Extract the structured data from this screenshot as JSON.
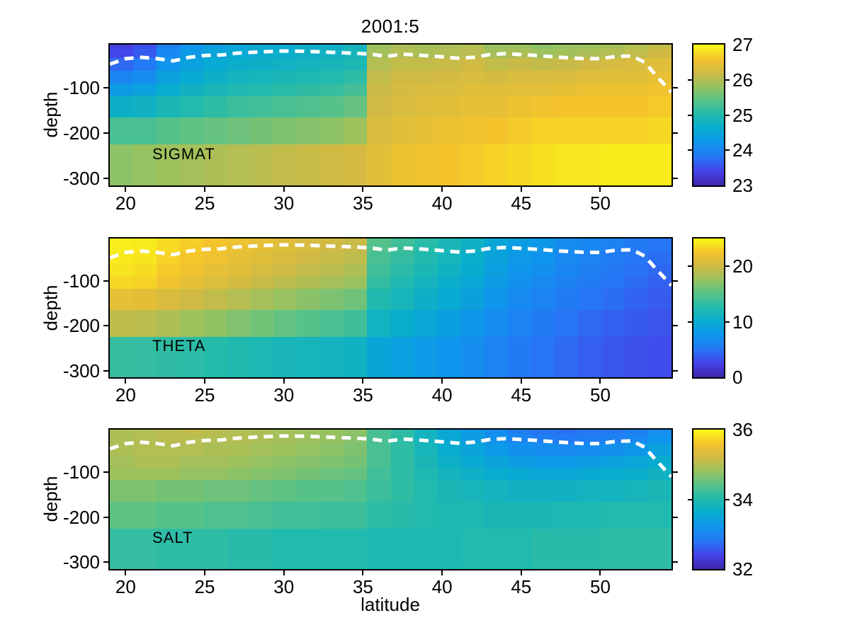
{
  "figure": {
    "title": "2001:5",
    "xlabel": "latitude",
    "ylabel": "depth",
    "background_color": "#ffffff",
    "text_color": "#000000"
  },
  "chart_data": {
    "type": "heatmap",
    "title": "2001:5",
    "xlabel": "latitude",
    "ylabel": "depth",
    "colormap": "parula",
    "grid": false,
    "x_range": [
      19.0,
      54.5
    ],
    "x_ticks": [
      20,
      25,
      30,
      35,
      40,
      45,
      50
    ],
    "depth_range": [
      -315,
      -5
    ],
    "y_ticks": [
      -100,
      -200,
      -300
    ],
    "lat_edges": [
      19.0,
      20.48,
      21.96,
      23.44,
      24.92,
      26.4,
      27.88,
      29.35,
      30.83,
      32.31,
      33.79,
      35.27,
      36.75,
      38.23,
      39.71,
      41.19,
      42.67,
      44.15,
      45.63,
      47.1,
      48.58,
      50.06,
      51.54,
      53.02,
      54.5
    ],
    "depth_edges": [
      -5,
      -15,
      -35,
      -63,
      -90,
      -117,
      -165,
      -225,
      -315
    ],
    "colormap_stops": [
      [
        0.0,
        [
          62,
          38,
          168
        ]
      ],
      [
        0.1,
        [
          70,
          66,
          232
        ]
      ],
      [
        0.2,
        [
          38,
          118,
          245
        ]
      ],
      [
        0.3,
        [
          15,
          148,
          237
        ]
      ],
      [
        0.4,
        [
          7,
          172,
          207
        ]
      ],
      [
        0.5,
        [
          33,
          186,
          174
        ]
      ],
      [
        0.6,
        [
          86,
          194,
          138
        ]
      ],
      [
        0.7,
        [
          150,
          194,
          97
        ]
      ],
      [
        0.8,
        [
          208,
          186,
          68
        ]
      ],
      [
        0.9,
        [
          245,
          196,
          44
        ]
      ],
      [
        1.0,
        [
          249,
          251,
          21
        ]
      ]
    ],
    "mld_line": {
      "name": "mixed-layer-depth",
      "color": "#ffffff",
      "style": "dashed",
      "points": [
        [
          19,
          -48
        ],
        [
          20,
          -36
        ],
        [
          21,
          -33
        ],
        [
          22,
          -36
        ],
        [
          23,
          -41
        ],
        [
          24,
          -33
        ],
        [
          25,
          -29
        ],
        [
          26,
          -28
        ],
        [
          27,
          -24
        ],
        [
          28.5,
          -21
        ],
        [
          30,
          -19
        ],
        [
          31.5,
          -20
        ],
        [
          33,
          -22
        ],
        [
          34.5,
          -24
        ],
        [
          35.5,
          -26
        ],
        [
          36.5,
          -31
        ],
        [
          37.5,
          -26
        ],
        [
          38.5,
          -28
        ],
        [
          40,
          -32
        ],
        [
          41,
          -35
        ],
        [
          42,
          -33
        ],
        [
          43,
          -27
        ],
        [
          44,
          -25
        ],
        [
          45,
          -27
        ],
        [
          46,
          -29
        ],
        [
          47.5,
          -33
        ],
        [
          49,
          -36
        ],
        [
          50,
          -36
        ],
        [
          51,
          -31
        ],
        [
          52,
          -30
        ],
        [
          52.8,
          -44
        ],
        [
          53.5,
          -72
        ],
        [
          54.5,
          -110
        ]
      ]
    },
    "panels": [
      {
        "label": "SIGMAT",
        "clim": [
          23,
          27
        ],
        "colorbar_ticks": [
          23,
          24,
          25,
          26,
          27
        ],
        "values": [
          [
            23.35,
            23.5,
            23.95,
            24.2,
            24.35,
            24.45,
            24.55,
            24.6,
            24.65,
            24.7,
            24.8,
            25.85,
            25.95,
            25.9,
            25.95,
            26.0,
            25.8,
            25.85,
            25.75,
            25.8,
            25.85,
            25.9,
            26.0,
            26.1
          ],
          [
            23.45,
            23.6,
            24.05,
            24.3,
            24.45,
            24.55,
            24.6,
            24.65,
            24.7,
            24.75,
            24.85,
            25.9,
            26.0,
            25.95,
            26.0,
            26.05,
            25.9,
            25.95,
            25.85,
            25.9,
            25.95,
            26.0,
            26.1,
            26.2
          ],
          [
            23.7,
            23.85,
            24.2,
            24.4,
            24.55,
            24.65,
            24.7,
            24.75,
            24.8,
            24.85,
            24.95,
            26.0,
            26.1,
            26.1,
            26.15,
            26.2,
            26.1,
            26.15,
            26.1,
            26.15,
            26.2,
            26.25,
            26.3,
            26.35
          ],
          [
            24.0,
            24.1,
            24.4,
            24.55,
            24.7,
            24.8,
            24.85,
            24.9,
            24.95,
            25.0,
            25.1,
            26.1,
            26.2,
            26.2,
            26.25,
            26.3,
            26.25,
            26.3,
            26.3,
            26.3,
            26.35,
            26.4,
            26.4,
            26.45
          ],
          [
            24.3,
            24.4,
            24.6,
            24.75,
            24.85,
            24.95,
            25.0,
            25.05,
            25.1,
            25.15,
            25.25,
            26.15,
            26.25,
            26.3,
            26.3,
            26.35,
            26.35,
            26.4,
            26.4,
            26.45,
            26.5,
            26.5,
            26.5,
            26.55
          ],
          [
            24.7,
            24.75,
            24.9,
            25.0,
            25.1,
            25.2,
            25.25,
            25.3,
            25.35,
            25.4,
            25.5,
            26.2,
            26.3,
            26.35,
            26.4,
            26.45,
            26.45,
            26.5,
            26.55,
            26.6,
            26.6,
            26.6,
            26.6,
            26.65
          ],
          [
            25.3,
            25.3,
            25.4,
            25.45,
            25.5,
            25.55,
            25.6,
            25.65,
            25.7,
            25.75,
            25.85,
            26.3,
            26.4,
            26.45,
            26.5,
            26.55,
            26.6,
            26.65,
            26.7,
            26.7,
            26.7,
            26.7,
            26.7,
            26.75
          ],
          [
            25.75,
            25.8,
            25.85,
            25.9,
            25.95,
            26.0,
            26.05,
            26.1,
            26.15,
            26.2,
            26.25,
            26.4,
            26.5,
            26.55,
            26.6,
            26.65,
            26.7,
            26.75,
            26.8,
            26.85,
            26.85,
            26.9,
            26.9,
            26.9
          ]
        ]
      },
      {
        "label": "THETA",
        "clim": [
          0,
          25
        ],
        "colorbar_ticks": [
          0,
          10,
          20
        ],
        "values": [
          [
            24.5,
            24.3,
            23.6,
            23.0,
            22.5,
            22.0,
            21.5,
            21.0,
            20.5,
            20.2,
            19.8,
            15.0,
            14.0,
            13.0,
            12.0,
            11.0,
            9.5,
            8.5,
            8.0,
            7.0,
            6.5,
            6.0,
            5.5,
            5.0
          ],
          [
            24.4,
            24.2,
            23.5,
            22.9,
            22.4,
            21.9,
            21.4,
            20.9,
            20.4,
            20.0,
            19.6,
            14.8,
            13.8,
            12.8,
            11.8,
            10.8,
            9.3,
            8.3,
            7.8,
            6.9,
            6.4,
            5.9,
            5.4,
            4.9
          ],
          [
            24.2,
            24.0,
            23.2,
            22.6,
            22.0,
            21.5,
            21.0,
            20.5,
            20.0,
            19.6,
            19.2,
            14.4,
            13.4,
            12.4,
            11.4,
            10.4,
            9.0,
            8.0,
            7.5,
            6.6,
            6.1,
            5.6,
            5.1,
            4.6
          ],
          [
            23.9,
            23.6,
            22.8,
            22.1,
            21.5,
            21.0,
            20.4,
            19.9,
            19.4,
            19.0,
            18.5,
            13.9,
            12.9,
            11.9,
            10.9,
            9.9,
            8.6,
            7.6,
            7.1,
            6.3,
            5.8,
            5.3,
            4.8,
            4.3
          ],
          [
            23.4,
            23.1,
            22.2,
            21.5,
            20.9,
            20.3,
            19.7,
            19.1,
            18.6,
            18.1,
            17.6,
            13.3,
            12.3,
            11.3,
            10.4,
            9.4,
            8.2,
            7.2,
            6.7,
            5.9,
            5.5,
            5.0,
            4.5,
            4.0
          ],
          [
            21.5,
            21.3,
            20.6,
            20.0,
            19.4,
            18.8,
            18.2,
            17.6,
            17.0,
            16.5,
            16.0,
            12.4,
            11.5,
            10.6,
            9.7,
            8.8,
            7.6,
            6.7,
            6.2,
            5.5,
            5.0,
            4.6,
            4.1,
            3.7
          ],
          [
            19.3,
            19.1,
            18.5,
            17.9,
            17.3,
            16.7,
            16.1,
            15.5,
            14.9,
            14.4,
            13.9,
            11.0,
            10.2,
            9.4,
            8.6,
            7.8,
            6.8,
            6.0,
            5.5,
            4.9,
            4.4,
            4.0,
            3.6,
            3.3
          ],
          [
            13.5,
            13.4,
            13.2,
            13.0,
            12.7,
            12.4,
            12.1,
            11.8,
            11.5,
            11.2,
            10.9,
            9.3,
            8.7,
            8.1,
            7.5,
            6.9,
            6.1,
            5.4,
            4.9,
            4.4,
            3.9,
            3.5,
            3.2,
            3.0
          ]
        ]
      },
      {
        "label": "SALT",
        "clim": [
          32,
          36
        ],
        "colorbar_ticks": [
          32,
          34,
          36
        ],
        "values": [
          [
            34.95,
            35.0,
            35.05,
            35.1,
            35.05,
            35.0,
            34.95,
            34.9,
            34.85,
            34.8,
            34.75,
            34.3,
            34.1,
            33.8,
            33.5,
            33.3,
            33.1,
            32.9,
            32.8,
            32.75,
            32.8,
            32.85,
            32.95,
            33.1
          ],
          [
            34.95,
            35.0,
            35.05,
            35.05,
            35.0,
            35.0,
            34.95,
            34.9,
            34.85,
            34.8,
            34.7,
            34.3,
            34.1,
            33.8,
            33.55,
            33.35,
            33.15,
            33.0,
            32.9,
            32.85,
            32.9,
            32.95,
            33.05,
            33.2
          ],
          [
            34.95,
            35.0,
            35.0,
            35.0,
            34.95,
            34.95,
            34.9,
            34.85,
            34.8,
            34.75,
            34.65,
            34.3,
            34.1,
            33.85,
            33.6,
            33.45,
            33.3,
            33.15,
            33.1,
            33.05,
            33.1,
            33.15,
            33.25,
            33.4
          ],
          [
            34.9,
            34.95,
            34.95,
            34.9,
            34.9,
            34.85,
            34.8,
            34.75,
            34.7,
            34.65,
            34.6,
            34.3,
            34.1,
            33.9,
            33.7,
            33.55,
            33.45,
            33.35,
            33.3,
            33.3,
            33.35,
            33.4,
            33.5,
            33.6
          ],
          [
            34.85,
            34.85,
            34.85,
            34.8,
            34.8,
            34.75,
            34.7,
            34.65,
            34.6,
            34.55,
            34.5,
            34.25,
            34.1,
            33.95,
            33.8,
            33.7,
            33.6,
            33.55,
            33.5,
            33.5,
            33.55,
            33.6,
            33.65,
            33.75
          ],
          [
            34.65,
            34.65,
            34.6,
            34.6,
            34.55,
            34.55,
            34.5,
            34.45,
            34.4,
            34.4,
            34.35,
            34.2,
            34.1,
            34.0,
            33.9,
            33.85,
            33.8,
            33.75,
            33.75,
            33.75,
            33.8,
            33.8,
            33.85,
            33.9
          ],
          [
            34.45,
            34.45,
            34.4,
            34.4,
            34.35,
            34.35,
            34.3,
            34.25,
            34.25,
            34.2,
            34.2,
            34.1,
            34.05,
            34.0,
            33.95,
            33.95,
            33.9,
            33.9,
            33.9,
            33.95,
            33.95,
            34.0,
            34.0,
            34.0
          ],
          [
            34.15,
            34.15,
            34.1,
            34.1,
            34.1,
            34.05,
            34.05,
            34.0,
            34.0,
            34.0,
            34.0,
            33.95,
            33.95,
            33.95,
            33.95,
            34.0,
            34.0,
            34.0,
            34.05,
            34.05,
            34.05,
            34.1,
            34.1,
            34.1
          ]
        ]
      }
    ]
  }
}
